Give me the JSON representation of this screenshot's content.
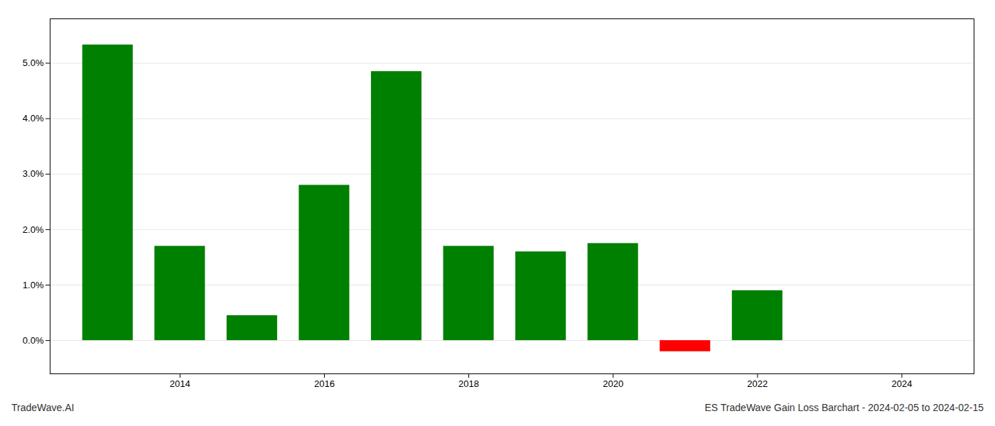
{
  "chart_data": {
    "type": "bar",
    "title": "ES TradeWave Gain Loss Barchart - 2024-02-05 to 2024-02-15",
    "annotations": [
      "TradeWave.AI"
    ],
    "x": [
      2013,
      2014,
      2015,
      2016,
      2017,
      2018,
      2019,
      2020,
      2021,
      2022,
      2023
    ],
    "values": [
      0.0533,
      0.017,
      0.0045,
      0.028,
      0.0485,
      0.017,
      0.016,
      0.0175,
      -0.002,
      0.009,
      0.0
    ],
    "colors": [
      "#008000",
      "#008000",
      "#008000",
      "#008000",
      "#008000",
      "#008000",
      "#008000",
      "#008000",
      "#ff0000",
      "#008000",
      "#ffffff"
    ],
    "xlim": [
      2012.2,
      2025.0
    ],
    "xticks": [
      2014,
      2016,
      2018,
      2020,
      2022,
      2024
    ],
    "ylim": [
      -0.006,
      0.058
    ],
    "yticks": [
      {
        "value": 0.0,
        "label": "0.0%"
      },
      {
        "value": 0.01,
        "label": "1.0%"
      },
      {
        "value": 0.02,
        "label": "2.0%"
      },
      {
        "value": 0.03,
        "label": "3.0%"
      },
      {
        "value": 0.04,
        "label": "4.0%"
      },
      {
        "value": 0.05,
        "label": "5.0%"
      }
    ],
    "grid": true
  }
}
